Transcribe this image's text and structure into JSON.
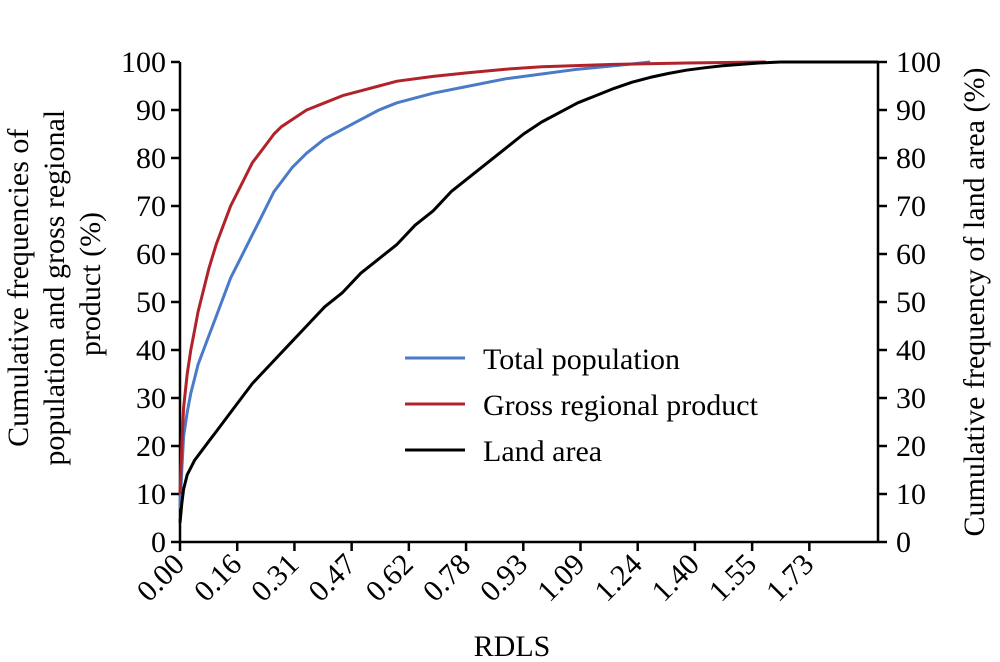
{
  "chart_data": {
    "type": "line",
    "xlabel": "RDLS",
    "ylabel_left": [
      "Cumulative frequencies of",
      "population and gross regional",
      "product (%)"
    ],
    "ylabel_right": "Cumulative frequency of land area (%)",
    "x_ticks": [
      "0.00",
      "0.16",
      "0.31",
      "0.47",
      "0.62",
      "0.78",
      "0.93",
      "1.09",
      "1.24",
      "1.40",
      "1.55",
      "1.73"
    ],
    "y_ticks": [
      "0",
      "10",
      "20",
      "30",
      "40",
      "50",
      "60",
      "70",
      "80",
      "90",
      "100"
    ],
    "xlim": [
      0,
      1.93
    ],
    "ylim_left": [
      0,
      100
    ],
    "ylim_right": [
      0,
      100
    ],
    "grid": false,
    "legend_position": "center-right",
    "series": [
      {
        "name": "Total population",
        "color": "#4a7ac8",
        "axis": "left",
        "x": [
          0.0,
          0.005,
          0.01,
          0.02,
          0.03,
          0.04,
          0.05,
          0.06,
          0.08,
          0.1,
          0.12,
          0.14,
          0.16,
          0.18,
          0.2,
          0.22,
          0.24,
          0.26,
          0.28,
          0.31,
          0.35,
          0.4,
          0.45,
          0.5,
          0.55,
          0.6,
          0.7,
          0.8,
          0.9,
          1.0,
          1.1,
          1.2,
          1.3
        ],
        "y": [
          7,
          15,
          22,
          27,
          31,
          34,
          37,
          39,
          43,
          47,
          51,
          55,
          58,
          61,
          64,
          67,
          70,
          73,
          75,
          78,
          81,
          84,
          86,
          88,
          90,
          91.5,
          93.5,
          95,
          96.5,
          97.5,
          98.5,
          99.2,
          100
        ]
      },
      {
        "name": "Gross regional product",
        "color": "#b0232a",
        "axis": "left",
        "x": [
          0.0,
          0.005,
          0.01,
          0.02,
          0.03,
          0.04,
          0.05,
          0.06,
          0.08,
          0.1,
          0.12,
          0.14,
          0.16,
          0.18,
          0.2,
          0.22,
          0.24,
          0.26,
          0.28,
          0.31,
          0.35,
          0.4,
          0.45,
          0.5,
          0.55,
          0.6,
          0.7,
          0.8,
          0.9,
          1.0,
          1.2,
          1.4,
          1.62
        ],
        "y": [
          10,
          20,
          28,
          35,
          40,
          44,
          48,
          51,
          57,
          62,
          66,
          70,
          73,
          76,
          79,
          81,
          83,
          85,
          86.5,
          88,
          90,
          91.5,
          93,
          94,
          95,
          96,
          97,
          97.8,
          98.5,
          99,
          99.5,
          99.8,
          100
        ]
      },
      {
        "name": "Land area",
        "color": "#000000",
        "axis": "right",
        "x": [
          0.0,
          0.005,
          0.01,
          0.02,
          0.04,
          0.06,
          0.08,
          0.1,
          0.15,
          0.2,
          0.25,
          0.3,
          0.35,
          0.4,
          0.45,
          0.5,
          0.55,
          0.6,
          0.65,
          0.7,
          0.75,
          0.8,
          0.85,
          0.9,
          0.95,
          1.0,
          1.05,
          1.1,
          1.15,
          1.2,
          1.25,
          1.3,
          1.35,
          1.4,
          1.45,
          1.5,
          1.55,
          1.6,
          1.66,
          1.93
        ],
        "y": [
          4,
          8,
          11,
          14,
          17,
          19,
          21,
          23,
          28,
          33,
          37,
          41,
          45,
          49,
          52,
          56,
          59,
          62,
          66,
          69,
          73,
          76,
          79,
          82,
          85,
          87.5,
          89.5,
          91.5,
          93,
          94.5,
          95.8,
          96.8,
          97.6,
          98.3,
          98.8,
          99.2,
          99.5,
          99.8,
          100,
          100
        ]
      }
    ]
  }
}
